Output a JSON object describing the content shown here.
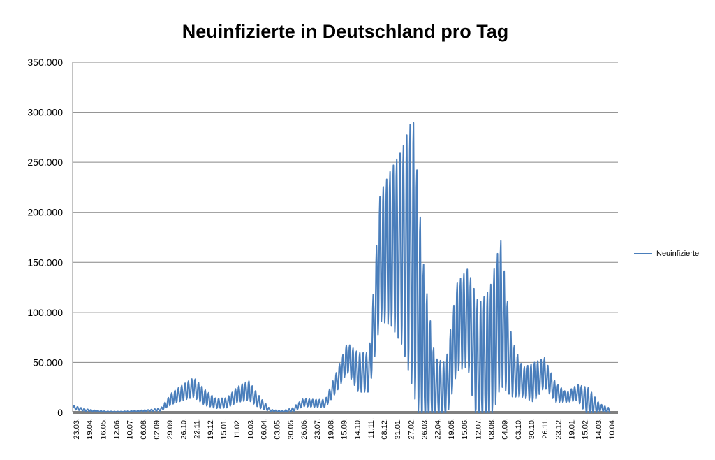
{
  "chart_data": {
    "type": "line",
    "title": "Neuinfizierte in Deutschland pro Tag",
    "xlabel": "",
    "ylabel": "",
    "ylim": [
      0,
      350000
    ],
    "y_ticks": [
      "0",
      "50.000",
      "100.000",
      "150.000",
      "200.000",
      "250.000",
      "300.000",
      "350.000"
    ],
    "y_tick_values": [
      0,
      50000,
      100000,
      150000,
      200000,
      250000,
      300000,
      350000
    ],
    "x_tick_labels": [
      "23.03.",
      "19.04.",
      "16.05.",
      "12.06.",
      "10.07.",
      "06.08.",
      "02.09.",
      "29.09.",
      "26.10.",
      "22.11.",
      "19.12.",
      "15.01.",
      "11.02.",
      "10.03.",
      "06.04.",
      "03.05.",
      "30.05.",
      "26.06.",
      "23.07.",
      "19.08.",
      "15.09.",
      "14.10.",
      "11.11.",
      "08.12.",
      "31.01.",
      "27.02.",
      "26.03.",
      "22.04.",
      "19.05.",
      "15.06.",
      "12.07.",
      "08.08.",
      "04.09.",
      "03.10.",
      "30.10.",
      "26.11.",
      "23.12.",
      "19.01.",
      "15.02.",
      "14.03.",
      "10.04."
    ],
    "grid": true,
    "legend_position": "right",
    "series": [
      {
        "name": "Neuinfizierte",
        "color": "#4a7ebb",
        "baseline": [
          5000,
          2500,
          1500,
          800,
          700,
          1000,
          1500,
          2000,
          3000,
          14000,
          20000,
          25000,
          15000,
          9000,
          9500,
          18000,
          22000,
          10000,
          2000,
          1000,
          2500,
          10000,
          9000,
          9000,
          30000,
          55000,
          40000,
          40000,
          155000,
          165000,
          165000,
          160000,
          55000,
          25000,
          20000,
          85000,
          95000,
          40000,
          55000,
          100000,
          45000,
          30000,
          30000,
          40000,
          20000,
          15000,
          20000,
          10000,
          5000,
          2000
        ],
        "amplitude": [
          2000,
          1200,
          700,
          400,
          300,
          400,
          600,
          800,
          1500,
          6000,
          8000,
          10000,
          8000,
          5000,
          5000,
          8000,
          10000,
          6000,
          1000,
          500,
          2000,
          4000,
          4000,
          4000,
          10000,
          15000,
          20000,
          20000,
          65000,
          80000,
          100000,
          140000,
          90000,
          30000,
          30000,
          45000,
          50000,
          70000,
          70000,
          75000,
          30000,
          15000,
          20000,
          15000,
          10000,
          5000,
          8000,
          15000,
          4000,
          2000
        ]
      }
    ]
  }
}
